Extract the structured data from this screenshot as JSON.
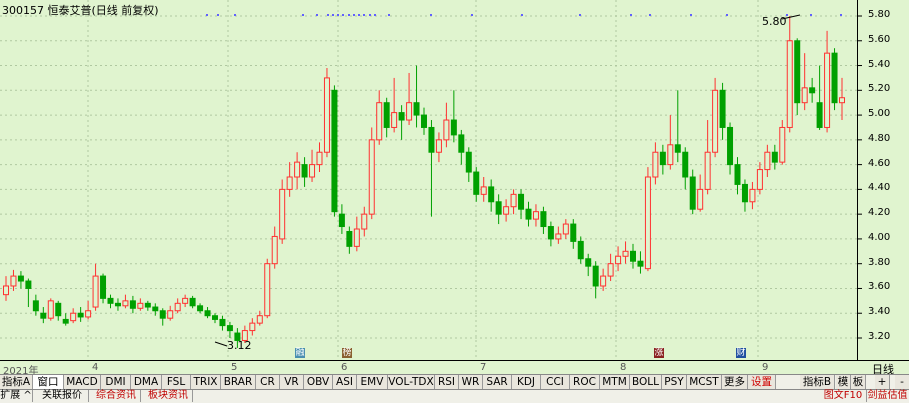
{
  "header": {
    "title": "300157 恒泰艾普(日线 前复权)"
  },
  "price_axis": {
    "labels": [
      "5.80",
      "5.60",
      "5.40",
      "5.20",
      "5.00",
      "4.80",
      "4.60",
      "4.40",
      "4.20",
      "4.00",
      "3.80",
      "3.60",
      "3.40",
      "3.20"
    ]
  },
  "annotations": {
    "high": "5.80",
    "low": "3.12"
  },
  "date_axis": {
    "labels": [
      "2021年",
      "4",
      "5",
      "6",
      "7",
      "8",
      "9"
    ]
  },
  "event_markers": [
    {
      "text": "融",
      "color": "#4a8fb0"
    },
    {
      "text": "榜",
      "color": "#8a6030"
    },
    {
      "text": "涨",
      "color": "#8a2020"
    },
    {
      "text": "财",
      "color": "#2050a0"
    }
  ],
  "right_panel": {
    "label": "日线",
    "plus": "+",
    "minus": "-"
  },
  "toolbar": {
    "items": [
      "指标A",
      "窗口",
      "MACD",
      "DMI",
      "DMA",
      "FSL",
      "TRIX",
      "BRAR",
      "CR",
      "VR",
      "OBV",
      "ASI",
      "EMV",
      "VOL-TDX",
      "RSI",
      "WR",
      "SAR",
      "KDJ",
      "CCI",
      "ROC",
      "MTM",
      "BOLL",
      "PSY",
      "MCST",
      "更多",
      "设置"
    ],
    "right_items": [
      "指标B",
      "模",
      "板"
    ]
  },
  "bottom_bar": {
    "items": [
      "扩展 ^",
      "关联报价",
      "综合资讯",
      "板块资讯"
    ],
    "right_items": [
      "图文F10",
      "剑益估值"
    ]
  },
  "colors": {
    "up": "#ff3030",
    "down": "#00a000",
    "background": "#e0f4cf"
  },
  "chart_data": {
    "type": "candlestick",
    "title": "300157 恒泰艾普(日线 前复权)",
    "y_range": [
      3.1,
      5.85
    ],
    "high": 5.8,
    "low": 3.12,
    "candles": [
      {
        "o": 3.55,
        "c": 3.62,
        "h": 3.7,
        "l": 3.5
      },
      {
        "o": 3.62,
        "c": 3.7,
        "h": 3.75,
        "l": 3.58
      },
      {
        "o": 3.7,
        "c": 3.66,
        "h": 3.74,
        "l": 3.6
      },
      {
        "o": 3.66,
        "c": 3.6,
        "h": 3.68,
        "l": 3.45
      },
      {
        "o": 3.5,
        "c": 3.42,
        "h": 3.55,
        "l": 3.38
      },
      {
        "o": 3.4,
        "c": 3.36,
        "h": 3.45,
        "l": 3.32
      },
      {
        "o": 3.36,
        "c": 3.5,
        "h": 3.52,
        "l": 3.34
      },
      {
        "o": 3.48,
        "c": 3.38,
        "h": 3.5,
        "l": 3.34
      },
      {
        "o": 3.35,
        "c": 3.32,
        "h": 3.4,
        "l": 3.3
      },
      {
        "o": 3.34,
        "c": 3.4,
        "h": 3.44,
        "l": 3.32
      },
      {
        "o": 3.4,
        "c": 3.37,
        "h": 3.45,
        "l": 3.33
      },
      {
        "o": 3.37,
        "c": 3.42,
        "h": 3.5,
        "l": 3.35
      },
      {
        "o": 3.45,
        "c": 3.7,
        "h": 3.8,
        "l": 3.42
      },
      {
        "o": 3.7,
        "c": 3.52,
        "h": 3.72,
        "l": 3.48
      },
      {
        "o": 3.52,
        "c": 3.48,
        "h": 3.55,
        "l": 3.44
      },
      {
        "o": 3.48,
        "c": 3.46,
        "h": 3.52,
        "l": 3.42
      },
      {
        "o": 3.46,
        "c": 3.5,
        "h": 3.55,
        "l": 3.44
      },
      {
        "o": 3.5,
        "c": 3.44,
        "h": 3.54,
        "l": 3.4
      },
      {
        "o": 3.44,
        "c": 3.48,
        "h": 3.52,
        "l": 3.42
      },
      {
        "o": 3.48,
        "c": 3.45,
        "h": 3.5,
        "l": 3.42
      },
      {
        "o": 3.45,
        "c": 3.42,
        "h": 3.48,
        "l": 3.38
      },
      {
        "o": 3.42,
        "c": 3.36,
        "h": 3.44,
        "l": 3.3
      },
      {
        "o": 3.36,
        "c": 3.42,
        "h": 3.46,
        "l": 3.34
      },
      {
        "o": 3.42,
        "c": 3.48,
        "h": 3.52,
        "l": 3.4
      },
      {
        "o": 3.48,
        "c": 3.52,
        "h": 3.55,
        "l": 3.45
      },
      {
        "o": 3.52,
        "c": 3.46,
        "h": 3.54,
        "l": 3.44
      },
      {
        "o": 3.46,
        "c": 3.42,
        "h": 3.48,
        "l": 3.4
      },
      {
        "o": 3.42,
        "c": 3.38,
        "h": 3.45,
        "l": 3.36
      },
      {
        "o": 3.38,
        "c": 3.35,
        "h": 3.4,
        "l": 3.32
      },
      {
        "o": 3.35,
        "c": 3.3,
        "h": 3.38,
        "l": 3.26
      },
      {
        "o": 3.3,
        "c": 3.26,
        "h": 3.33,
        "l": 3.2
      },
      {
        "o": 3.24,
        "c": 3.18,
        "h": 3.28,
        "l": 3.12
      },
      {
        "o": 3.18,
        "c": 3.26,
        "h": 3.3,
        "l": 3.16
      },
      {
        "o": 3.26,
        "c": 3.32,
        "h": 3.36,
        "l": 3.22
      },
      {
        "o": 3.32,
        "c": 3.38,
        "h": 3.42,
        "l": 3.3
      },
      {
        "o": 3.38,
        "c": 3.8,
        "h": 3.84,
        "l": 3.36
      },
      {
        "o": 3.8,
        "c": 4.02,
        "h": 4.1,
        "l": 3.76
      },
      {
        "o": 4.0,
        "c": 4.4,
        "h": 4.48,
        "l": 3.96
      },
      {
        "o": 4.4,
        "c": 4.5,
        "h": 4.62,
        "l": 4.34
      },
      {
        "o": 4.5,
        "c": 4.62,
        "h": 4.7,
        "l": 4.4
      },
      {
        "o": 4.6,
        "c": 4.5,
        "h": 4.66,
        "l": 4.42
      },
      {
        "o": 4.5,
        "c": 4.6,
        "h": 4.72,
        "l": 4.46
      },
      {
        "o": 4.6,
        "c": 4.7,
        "h": 4.78,
        "l": 4.54
      },
      {
        "o": 4.7,
        "c": 5.3,
        "h": 5.38,
        "l": 4.66
      },
      {
        "o": 5.2,
        "c": 4.22,
        "h": 5.24,
        "l": 4.18
      },
      {
        "o": 4.2,
        "c": 4.1,
        "h": 4.28,
        "l": 4.04
      },
      {
        "o": 4.06,
        "c": 3.94,
        "h": 4.1,
        "l": 3.88
      },
      {
        "o": 3.94,
        "c": 4.08,
        "h": 4.18,
        "l": 3.9
      },
      {
        "o": 4.08,
        "c": 4.2,
        "h": 4.26,
        "l": 4.02
      },
      {
        "o": 4.2,
        "c": 4.8,
        "h": 4.9,
        "l": 4.16
      },
      {
        "o": 4.8,
        "c": 5.1,
        "h": 5.2,
        "l": 4.76
      },
      {
        "o": 5.1,
        "c": 4.9,
        "h": 5.14,
        "l": 4.82
      },
      {
        "o": 4.9,
        "c": 5.02,
        "h": 5.3,
        "l": 4.86
      },
      {
        "o": 5.02,
        "c": 4.96,
        "h": 5.08,
        "l": 4.8
      },
      {
        "o": 4.96,
        "c": 5.1,
        "h": 5.34,
        "l": 4.92
      },
      {
        "o": 5.1,
        "c": 5.0,
        "h": 5.4,
        "l": 4.9
      },
      {
        "o": 5.0,
        "c": 4.9,
        "h": 5.06,
        "l": 4.84
      },
      {
        "o": 4.9,
        "c": 4.7,
        "h": 4.96,
        "l": 4.18
      },
      {
        "o": 4.7,
        "c": 4.8,
        "h": 4.86,
        "l": 4.62
      },
      {
        "o": 4.8,
        "c": 4.96,
        "h": 5.1,
        "l": 4.74
      },
      {
        "o": 4.96,
        "c": 4.84,
        "h": 5.2,
        "l": 4.78
      },
      {
        "o": 4.84,
        "c": 4.7,
        "h": 4.88,
        "l": 4.6
      },
      {
        "o": 4.7,
        "c": 4.54,
        "h": 4.74,
        "l": 4.46
      },
      {
        "o": 4.54,
        "c": 4.36,
        "h": 4.58,
        "l": 4.3
      },
      {
        "o": 4.36,
        "c": 4.42,
        "h": 4.5,
        "l": 4.3
      },
      {
        "o": 4.42,
        "c": 4.3,
        "h": 4.48,
        "l": 4.22
      },
      {
        "o": 4.3,
        "c": 4.2,
        "h": 4.36,
        "l": 4.12
      },
      {
        "o": 4.2,
        "c": 4.26,
        "h": 4.32,
        "l": 4.14
      },
      {
        "o": 4.26,
        "c": 4.36,
        "h": 4.4,
        "l": 4.2
      },
      {
        "o": 4.36,
        "c": 4.24,
        "h": 4.4,
        "l": 4.16
      },
      {
        "o": 4.24,
        "c": 4.16,
        "h": 4.3,
        "l": 4.1
      },
      {
        "o": 4.16,
        "c": 4.22,
        "h": 4.28,
        "l": 4.1
      },
      {
        "o": 4.22,
        "c": 4.1,
        "h": 4.26,
        "l": 4.04
      },
      {
        "o": 4.1,
        "c": 4.0,
        "h": 4.14,
        "l": 3.94
      },
      {
        "o": 4.0,
        "c": 4.04,
        "h": 4.1,
        "l": 3.96
      },
      {
        "o": 4.04,
        "c": 4.12,
        "h": 4.16,
        "l": 4.0
      },
      {
        "o": 4.12,
        "c": 3.98,
        "h": 4.16,
        "l": 3.92
      },
      {
        "o": 3.98,
        "c": 3.84,
        "h": 4.02,
        "l": 3.8
      },
      {
        "o": 3.84,
        "c": 3.78,
        "h": 3.88,
        "l": 3.7
      },
      {
        "o": 3.78,
        "c": 3.62,
        "h": 3.82,
        "l": 3.52
      },
      {
        "o": 3.62,
        "c": 3.7,
        "h": 3.76,
        "l": 3.58
      },
      {
        "o": 3.7,
        "c": 3.8,
        "h": 3.88,
        "l": 3.66
      },
      {
        "o": 3.8,
        "c": 3.86,
        "h": 3.94,
        "l": 3.74
      },
      {
        "o": 3.86,
        "c": 3.9,
        "h": 3.98,
        "l": 3.8
      },
      {
        "o": 3.9,
        "c": 3.82,
        "h": 3.96,
        "l": 3.76
      },
      {
        "o": 3.82,
        "c": 3.78,
        "h": 3.9,
        "l": 3.72
      },
      {
        "o": 3.76,
        "c": 4.5,
        "h": 4.58,
        "l": 3.74
      },
      {
        "o": 4.5,
        "c": 4.7,
        "h": 4.78,
        "l": 4.44
      },
      {
        "o": 4.7,
        "c": 4.6,
        "h": 4.76,
        "l": 4.52
      },
      {
        "o": 4.6,
        "c": 4.76,
        "h": 5.0,
        "l": 4.56
      },
      {
        "o": 4.76,
        "c": 4.7,
        "h": 5.2,
        "l": 4.62
      },
      {
        "o": 4.7,
        "c": 4.5,
        "h": 4.74,
        "l": 4.4
      },
      {
        "o": 4.5,
        "c": 4.24,
        "h": 4.56,
        "l": 4.2
      },
      {
        "o": 4.24,
        "c": 4.4,
        "h": 4.52,
        "l": 4.22
      },
      {
        "o": 4.4,
        "c": 4.7,
        "h": 4.96,
        "l": 4.36
      },
      {
        "o": 4.7,
        "c": 5.2,
        "h": 5.3,
        "l": 4.66
      },
      {
        "o": 5.2,
        "c": 4.9,
        "h": 5.26,
        "l": 4.8
      },
      {
        "o": 4.9,
        "c": 4.6,
        "h": 4.94,
        "l": 4.52
      },
      {
        "o": 4.6,
        "c": 4.44,
        "h": 4.66,
        "l": 4.36
      },
      {
        "o": 4.44,
        "c": 4.3,
        "h": 4.48,
        "l": 4.22
      },
      {
        "o": 4.3,
        "c": 4.4,
        "h": 4.46,
        "l": 4.24
      },
      {
        "o": 4.4,
        "c": 4.56,
        "h": 4.62,
        "l": 4.36
      },
      {
        "o": 4.56,
        "c": 4.7,
        "h": 4.76,
        "l": 4.5
      },
      {
        "o": 4.7,
        "c": 4.62,
        "h": 4.76,
        "l": 4.56
      },
      {
        "o": 4.62,
        "c": 4.9,
        "h": 4.96,
        "l": 4.6
      },
      {
        "o": 4.9,
        "c": 5.6,
        "h": 5.8,
        "l": 4.86
      },
      {
        "o": 5.6,
        "c": 5.1,
        "h": 5.62,
        "l": 5.0
      },
      {
        "o": 5.1,
        "c": 5.22,
        "h": 5.5,
        "l": 5.04
      },
      {
        "o": 5.22,
        "c": 5.18,
        "h": 5.3,
        "l": 5.1
      },
      {
        "o": 5.1,
        "c": 4.9,
        "h": 5.4,
        "l": 4.88
      },
      {
        "o": 4.9,
        "c": 5.5,
        "h": 5.68,
        "l": 4.86
      },
      {
        "o": 5.5,
        "c": 5.1,
        "h": 5.54,
        "l": 5.04
      },
      {
        "o": 5.1,
        "c": 5.14,
        "h": 5.3,
        "l": 4.96
      }
    ]
  }
}
